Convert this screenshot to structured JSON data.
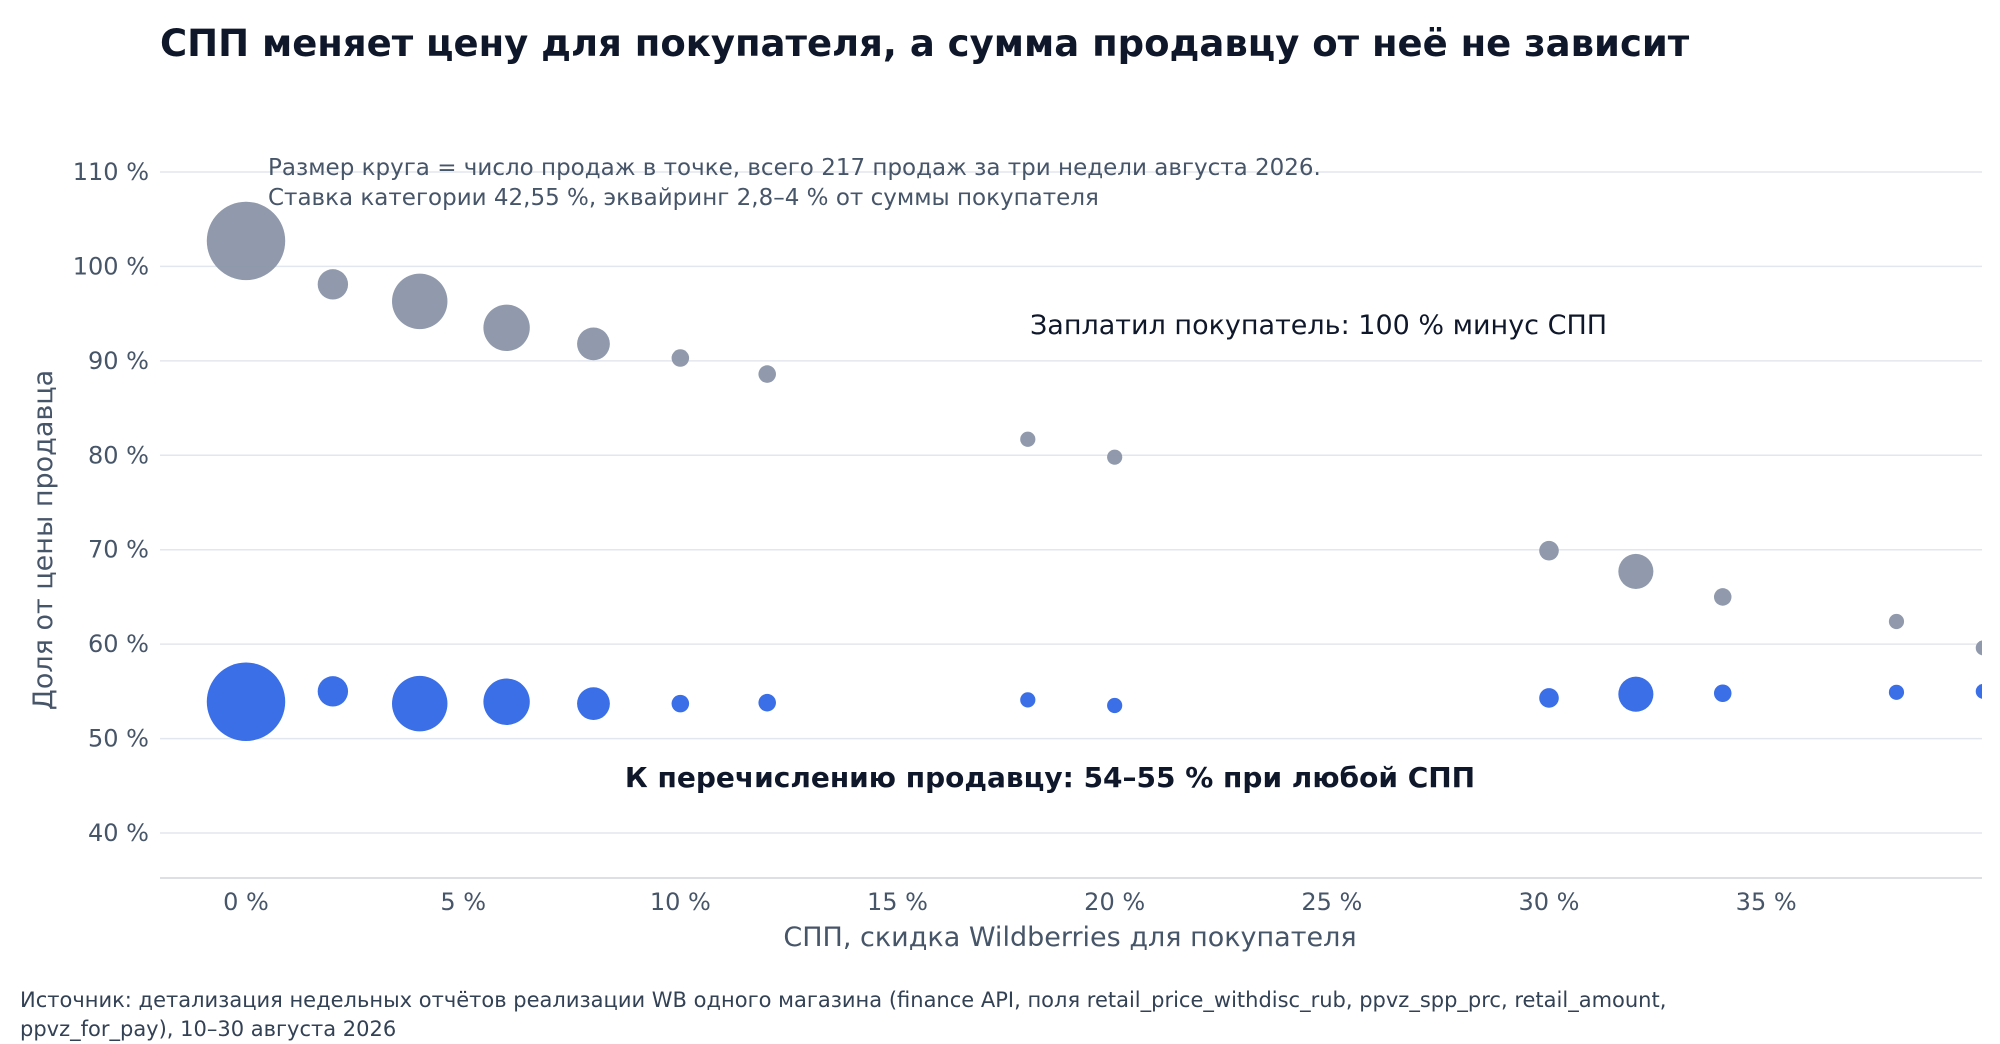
{
  "chart_data": {
    "type": "scatter",
    "title": "СПП меняет цену для покупателя, а сумма продавцу от неё не зависит",
    "xlabel": "СПП, скидка Wildberries для покупателя",
    "ylabel": "Доля от цены продавца",
    "x_ticks": [
      "0 %",
      "5 %",
      "10 %",
      "15 %",
      "20 %",
      "25 %",
      "30 %",
      "35 %"
    ],
    "y_ticks": [
      "40 %",
      "50 %",
      "60 %",
      "70 %",
      "80 %",
      "90 %",
      "100 %",
      "110 %"
    ],
    "xlim": [
      -2,
      40
    ],
    "ylim": [
      35,
      112
    ],
    "grid": "horizontal",
    "annotations": {
      "note_line1": "Размер круга = число продаж в точке, всего 217 продаж за три недели августа 2026.",
      "note_line2": "Ставка категории 42,55 %, эквайринг 2,8–4 % от суммы покупателя",
      "buyer_label": "Заплатил покупатель: 100 % минус СПП",
      "seller_label": "К перечислению продавцу: 54–55 % при любой СПП"
    },
    "series": [
      {
        "color": "#8a95a8",
        "points": [
          {
            "x": 0,
            "y": 102.7,
            "n": 40
          },
          {
            "x": 2,
            "y": 98.1,
            "n": 6
          },
          {
            "x": 4,
            "y": 96.3,
            "n": 20
          },
          {
            "x": 6,
            "y": 93.5,
            "n": 14
          },
          {
            "x": 8,
            "y": 91.8,
            "n": 7
          },
          {
            "x": 10,
            "y": 90.3,
            "n": 2
          },
          {
            "x": 12,
            "y": 88.6,
            "n": 2
          },
          {
            "x": 18,
            "y": 81.7,
            "n": 1.5
          },
          {
            "x": 20,
            "y": 79.8,
            "n": 1.5
          },
          {
            "x": 30,
            "y": 69.9,
            "n": 2.5
          },
          {
            "x": 32,
            "y": 67.7,
            "n": 8
          },
          {
            "x": 34,
            "y": 65.0,
            "n": 2
          },
          {
            "x": 38,
            "y": 62.4,
            "n": 1.5
          },
          {
            "x": 40,
            "y": 59.6,
            "n": 1.5
          }
        ]
      },
      {
        "color": "#3b6fe8",
        "points": [
          {
            "x": 0,
            "y": 53.9,
            "n": 40
          },
          {
            "x": 2,
            "y": 55.0,
            "n": 6
          },
          {
            "x": 4,
            "y": 53.7,
            "n": 20
          },
          {
            "x": 6,
            "y": 53.9,
            "n": 14
          },
          {
            "x": 8,
            "y": 53.7,
            "n": 7
          },
          {
            "x": 10,
            "y": 53.7,
            "n": 2
          },
          {
            "x": 12,
            "y": 53.8,
            "n": 2
          },
          {
            "x": 18,
            "y": 54.1,
            "n": 1.5
          },
          {
            "x": 20,
            "y": 53.5,
            "n": 1.5
          },
          {
            "x": 30,
            "y": 54.3,
            "n": 2.5
          },
          {
            "x": 32,
            "y": 54.7,
            "n": 8
          },
          {
            "x": 34,
            "y": 54.8,
            "n": 2
          },
          {
            "x": 38,
            "y": 54.9,
            "n": 1.5
          },
          {
            "x": 40,
            "y": 55.0,
            "n": 1.5
          }
        ]
      }
    ],
    "source_line1": "Источник: детализация недельных отчётов реализации WB одного магазина (finance API, поля retail_price_withdisc_rub, ppvz_spp_prc, retail_amount,",
    "source_line2": "ppvz_for_pay), 10–30 августа 2026"
  }
}
